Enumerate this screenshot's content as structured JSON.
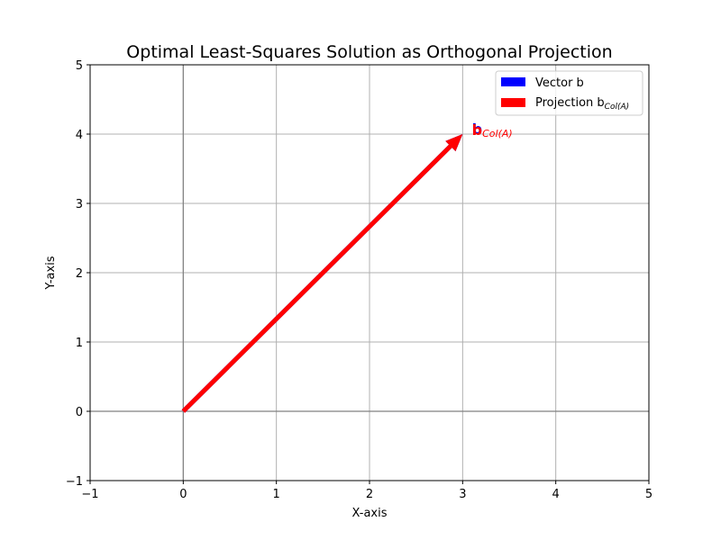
{
  "chart_data": {
    "type": "vector-plot",
    "title": "Optimal Least-Squares Solution as Orthogonal Projection",
    "xlabel": "X-axis",
    "ylabel": "Y-axis",
    "xlim": [
      -1,
      5
    ],
    "ylim": [
      -1,
      5
    ],
    "xticks": [
      "−1",
      "0",
      "1",
      "2",
      "3",
      "4",
      "5"
    ],
    "yticks": [
      "−1",
      "0",
      "1",
      "2",
      "3",
      "4",
      "5"
    ],
    "xtick_values": [
      -1,
      0,
      1,
      2,
      3,
      4,
      5
    ],
    "ytick_values": [
      -1,
      0,
      1,
      2,
      3,
      4,
      5
    ],
    "grid": true,
    "legend_position": "top-right",
    "vectors": [
      {
        "name": "Vector b",
        "origin": [
          0,
          0
        ],
        "end": [
          3,
          4
        ],
        "color": "#0000ff"
      },
      {
        "name": "Projection b",
        "name_sub": "Col(A)",
        "origin": [
          0,
          0
        ],
        "end": [
          3,
          4
        ],
        "color": "#ff0000"
      }
    ],
    "annotations": [
      {
        "text": "b",
        "anchor": [
          3.1,
          4.0
        ],
        "color": "#0000ff"
      },
      {
        "text": "b",
        "sub": "Col(A)",
        "anchor": [
          3.1,
          4.0
        ],
        "color": "#ff0000"
      }
    ]
  }
}
